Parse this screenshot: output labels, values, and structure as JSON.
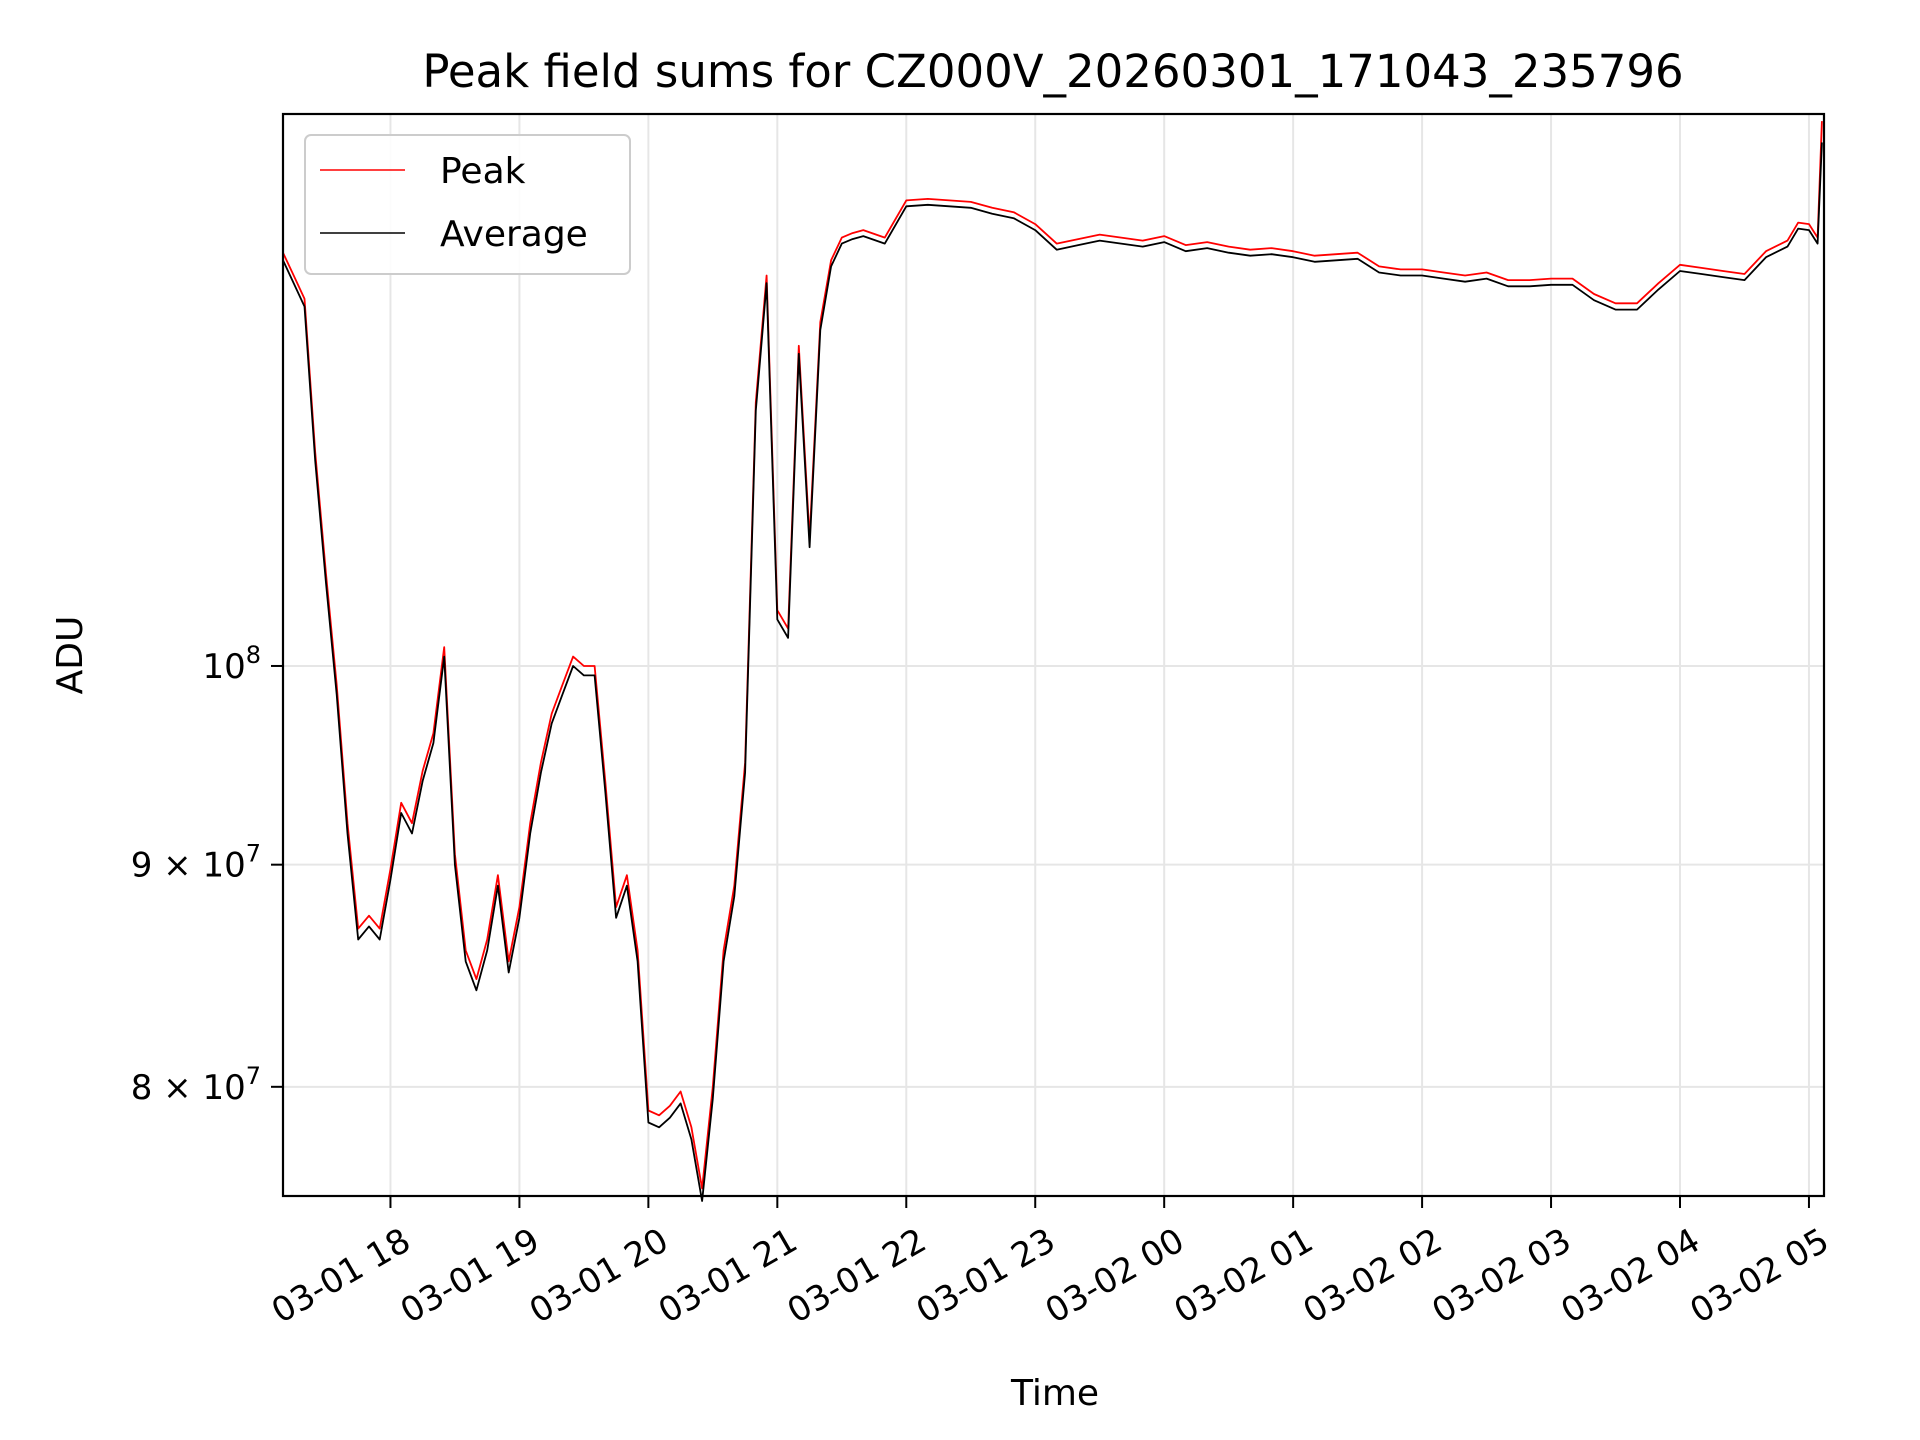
{
  "chart_data": {
    "type": "line",
    "title": "Peak field sums for CZ000V_20260301_171043_235796",
    "xlabel": "Time",
    "ylabel": "ADU",
    "yscale": "log",
    "grid": true,
    "legend_placement": "upper-left",
    "xlim": [
      "2026-03-01 17:10",
      "2026-03-02 05:07"
    ],
    "ylim": [
      75500000,
      134000000
    ],
    "x_ticks": [
      {
        "value": "2026-03-01 18:00",
        "label": "03-01 18"
      },
      {
        "value": "2026-03-01 19:00",
        "label": "03-01 19"
      },
      {
        "value": "2026-03-01 20:00",
        "label": "03-01 20"
      },
      {
        "value": "2026-03-01 21:00",
        "label": "03-01 21"
      },
      {
        "value": "2026-03-01 22:00",
        "label": "03-01 22"
      },
      {
        "value": "2026-03-01 23:00",
        "label": "03-01 23"
      },
      {
        "value": "2026-03-02 00:00",
        "label": "03-02 00"
      },
      {
        "value": "2026-03-02 01:00",
        "label": "03-02 01"
      },
      {
        "value": "2026-03-02 02:00",
        "label": "03-02 02"
      },
      {
        "value": "2026-03-02 03:00",
        "label": "03-02 03"
      },
      {
        "value": "2026-03-02 04:00",
        "label": "03-02 04"
      },
      {
        "value": "2026-03-02 05:00",
        "label": "03-02 05"
      }
    ],
    "y_ticks": [
      {
        "value": 80000000,
        "mantissa": "8",
        "base": "10",
        "exp": "7"
      },
      {
        "value": 90000000,
        "mantissa": "9",
        "base": "10",
        "exp": "7"
      },
      {
        "value": 100000000,
        "mantissa": "",
        "base": "10",
        "exp": "8"
      }
    ],
    "series": [
      {
        "name": "Peak",
        "color": "#ff0000"
      },
      {
        "name": "Average",
        "color": "#000000"
      }
    ],
    "x": [
      "2026-03-01 17:10",
      "2026-03-01 17:15",
      "2026-03-01 17:20",
      "2026-03-01 17:25",
      "2026-03-01 17:30",
      "2026-03-01 17:35",
      "2026-03-01 17:40",
      "2026-03-01 17:45",
      "2026-03-01 17:50",
      "2026-03-01 17:55",
      "2026-03-01 18:00",
      "2026-03-01 18:05",
      "2026-03-01 18:10",
      "2026-03-01 18:15",
      "2026-03-01 18:20",
      "2026-03-01 18:25",
      "2026-03-01 18:30",
      "2026-03-01 18:35",
      "2026-03-01 18:40",
      "2026-03-01 18:45",
      "2026-03-01 18:50",
      "2026-03-01 18:55",
      "2026-03-01 19:00",
      "2026-03-01 19:05",
      "2026-03-01 19:10",
      "2026-03-01 19:15",
      "2026-03-01 19:20",
      "2026-03-01 19:25",
      "2026-03-01 19:30",
      "2026-03-01 19:35",
      "2026-03-01 19:40",
      "2026-03-01 19:45",
      "2026-03-01 19:50",
      "2026-03-01 19:55",
      "2026-03-01 20:00",
      "2026-03-01 20:05",
      "2026-03-01 20:10",
      "2026-03-01 20:15",
      "2026-03-01 20:20",
      "2026-03-01 20:25",
      "2026-03-01 20:30",
      "2026-03-01 20:35",
      "2026-03-01 20:40",
      "2026-03-01 20:45",
      "2026-03-01 20:50",
      "2026-03-01 20:55",
      "2026-03-01 21:00",
      "2026-03-01 21:05",
      "2026-03-01 21:10",
      "2026-03-01 21:15",
      "2026-03-01 21:20",
      "2026-03-01 21:25",
      "2026-03-01 21:30",
      "2026-03-01 21:35",
      "2026-03-01 21:40",
      "2026-03-01 21:50",
      "2026-03-01 22:00",
      "2026-03-01 22:10",
      "2026-03-01 22:20",
      "2026-03-01 22:30",
      "2026-03-01 22:40",
      "2026-03-01 22:50",
      "2026-03-01 23:00",
      "2026-03-01 23:10",
      "2026-03-01 23:20",
      "2026-03-01 23:30",
      "2026-03-01 23:40",
      "2026-03-01 23:50",
      "2026-03-02 00:00",
      "2026-03-02 00:10",
      "2026-03-02 00:20",
      "2026-03-02 00:30",
      "2026-03-02 00:40",
      "2026-03-02 00:50",
      "2026-03-02 01:00",
      "2026-03-02 01:10",
      "2026-03-02 01:20",
      "2026-03-02 01:30",
      "2026-03-02 01:40",
      "2026-03-02 01:50",
      "2026-03-02 02:00",
      "2026-03-02 02:10",
      "2026-03-02 02:20",
      "2026-03-02 02:30",
      "2026-03-02 02:40",
      "2026-03-02 02:50",
      "2026-03-02 03:00",
      "2026-03-02 03:10",
      "2026-03-02 03:20",
      "2026-03-02 03:30",
      "2026-03-02 03:40",
      "2026-03-02 03:50",
      "2026-03-02 04:00",
      "2026-03-02 04:10",
      "2026-03-02 04:20",
      "2026-03-02 04:30",
      "2026-03-02 04:40",
      "2026-03-02 04:50",
      "2026-03-02 04:55",
      "2026-03-02 05:00",
      "2026-03-02 05:04",
      "2026-03-02 05:06"
    ],
    "peak_values": [
      124500000,
      123000000,
      121500000,
      112000000,
      105000000,
      99000000,
      92000000,
      87000000,
      87600000,
      87000000,
      89800000,
      93000000,
      92000000,
      94600000,
      96500000,
      101000000,
      90500000,
      86000000,
      84700000,
      86500000,
      89500000,
      85500000,
      88000000,
      92000000,
      95000000,
      97500000,
      99000000,
      100500000,
      100000000,
      100000000,
      94000000,
      88000000,
      89500000,
      86000000,
      79000000,
      78800000,
      79200000,
      79800000,
      78300000,
      75800000,
      80000000,
      86000000,
      89000000,
      95000000,
      115000000,
      123000000,
      103000000,
      102000000,
      118500000,
      107000000,
      120000000,
      124000000,
      125500000,
      125800000,
      126000000,
      125500000,
      128000000,
      128100000,
      128000000,
      127900000,
      127500000,
      127200000,
      126400000,
      125100000,
      125400000,
      125700000,
      125500000,
      125300000,
      125600000,
      125000000,
      125200000,
      124900000,
      124700000,
      124800000,
      124600000,
      124300000,
      124400000,
      124500000,
      123600000,
      123400000,
      123400000,
      123200000,
      123000000,
      123200000,
      122700000,
      122700000,
      122800000,
      122800000,
      121800000,
      121200000,
      121200000,
      122500000,
      123700000,
      123500000,
      123300000,
      123100000,
      124600000,
      125300000,
      126500000,
      126400000,
      125500000,
      133500000
    ],
    "average_values": [
      124000000,
      122500000,
      121000000,
      111500000,
      104500000,
      98500000,
      91500000,
      86500000,
      87100000,
      86500000,
      89300000,
      92500000,
      91500000,
      94100000,
      96000000,
      100500000,
      90000000,
      85500000,
      84200000,
      86000000,
      89000000,
      85000000,
      87500000,
      91500000,
      94500000,
      97000000,
      98500000,
      100000000,
      99500000,
      99500000,
      93500000,
      87500000,
      89000000,
      85500000,
      78500000,
      78300000,
      78700000,
      79300000,
      77800000,
      75300000,
      79500000,
      85500000,
      88500000,
      94500000,
      114500000,
      122500000,
      102500000,
      101500000,
      118000000,
      106500000,
      119500000,
      123600000,
      125100000,
      125400000,
      125600000,
      125100000,
      127600000,
      127700000,
      127600000,
      127500000,
      127100000,
      126800000,
      126000000,
      124700000,
      125000000,
      125300000,
      125100000,
      124900000,
      125200000,
      124600000,
      124800000,
      124500000,
      124300000,
      124400000,
      124200000,
      123900000,
      124000000,
      124100000,
      123200000,
      123000000,
      123000000,
      122800000,
      122600000,
      122800000,
      122300000,
      122300000,
      122400000,
      122400000,
      121400000,
      120800000,
      120800000,
      122100000,
      123300000,
      123100000,
      122900000,
      122700000,
      124200000,
      124900000,
      126100000,
      126000000,
      125100000,
      132000000
    ]
  }
}
